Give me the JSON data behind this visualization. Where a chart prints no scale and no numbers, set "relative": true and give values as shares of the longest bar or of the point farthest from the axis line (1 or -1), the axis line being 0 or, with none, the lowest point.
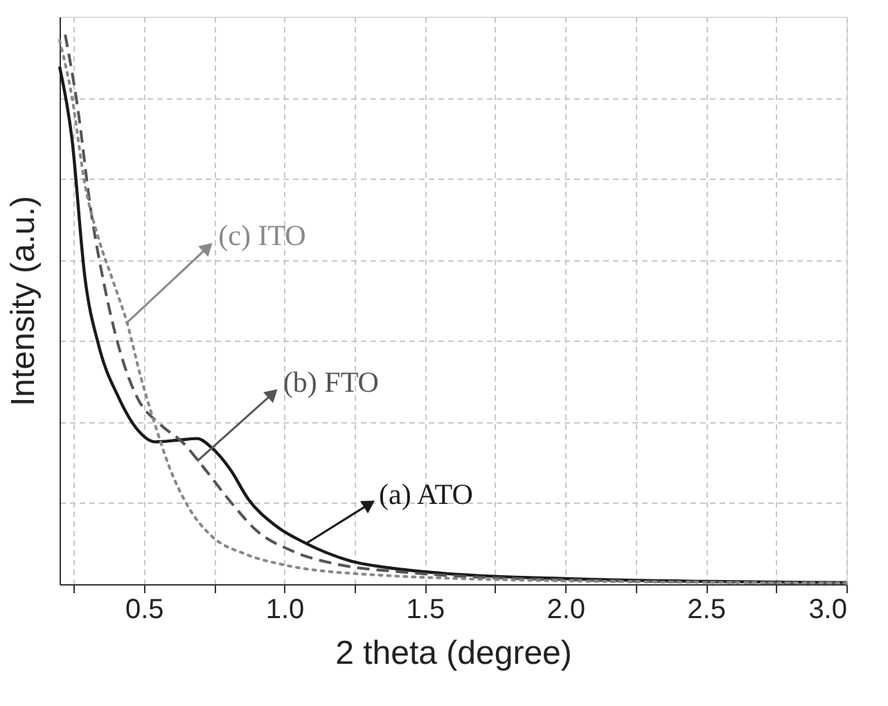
{
  "chart_data": {
    "type": "line",
    "relative": true,
    "xlabel": "2 theta (degree)",
    "ylabel": "Intensity (a.u.)",
    "xlim": [
      0.2,
      3.0
    ],
    "xticks": [
      {
        "value": 0.25,
        "label": null
      },
      0.5,
      {
        "value": 0.75,
        "label": null
      },
      {
        "value": 1.0,
        "label": "1.0"
      },
      {
        "value": 1.25,
        "label": null
      },
      1.5,
      {
        "value": 1.75,
        "label": null
      },
      {
        "value": 2.0,
        "label": "2.0"
      },
      {
        "value": 2.25,
        "label": null
      },
      2.5,
      {
        "value": 2.75,
        "label": null
      },
      {
        "value": 3.0,
        "label": "3.0"
      }
    ],
    "grid": true,
    "series": [
      {
        "color": "#1a1a1a",
        "line_style": "solid",
        "x": [
          0.2,
          0.244,
          0.29,
          0.34,
          0.41,
          0.476,
          0.54,
          0.62,
          0.69,
          0.74,
          0.81,
          0.87,
          0.97,
          1.07,
          1.23,
          1.4,
          1.56,
          2.0,
          2.5,
          3.0
        ],
        "values": [
          0.942,
          0.811,
          0.559,
          0.433,
          0.34,
          0.282,
          0.259,
          0.262,
          0.265,
          0.249,
          0.207,
          0.156,
          0.106,
          0.076,
          0.043,
          0.028,
          0.02,
          0.01,
          0.005,
          0.003
        ]
      },
      {
        "color": "#555555",
        "line_style": "dashed",
        "x": [
          0.22,
          0.264,
          0.31,
          0.36,
          0.41,
          0.476,
          0.56,
          0.64,
          0.71,
          0.81,
          0.9,
          1.03,
          1.2,
          1.4,
          2.0,
          3.0
        ],
        "values": [
          1.0,
          0.869,
          0.685,
          0.542,
          0.433,
          0.34,
          0.29,
          0.257,
          0.214,
          0.149,
          0.098,
          0.06,
          0.035,
          0.023,
          0.008,
          0.002
        ]
      },
      {
        "color": "#888888",
        "line_style": "dotted",
        "x": [
          0.2,
          0.244,
          0.29,
          0.34,
          0.39,
          0.44,
          0.49,
          0.54,
          0.59,
          0.66,
          0.74,
          0.86,
          1.0,
          1.23,
          2.0,
          3.0
        ],
        "values": [
          0.99,
          0.887,
          0.728,
          0.627,
          0.552,
          0.476,
          0.375,
          0.29,
          0.214,
          0.139,
          0.088,
          0.055,
          0.035,
          0.02,
          0.006,
          0.002
        ]
      }
    ],
    "annotations": [
      {
        "text": "(c) ITO",
        "x": 0.44,
        "y": 0.476
      },
      {
        "text": "(b) FTO",
        "x": 0.69,
        "y": 0.224
      },
      {
        "text": "(a) ATO",
        "x": 1.08,
        "y": 0.075
      }
    ]
  }
}
